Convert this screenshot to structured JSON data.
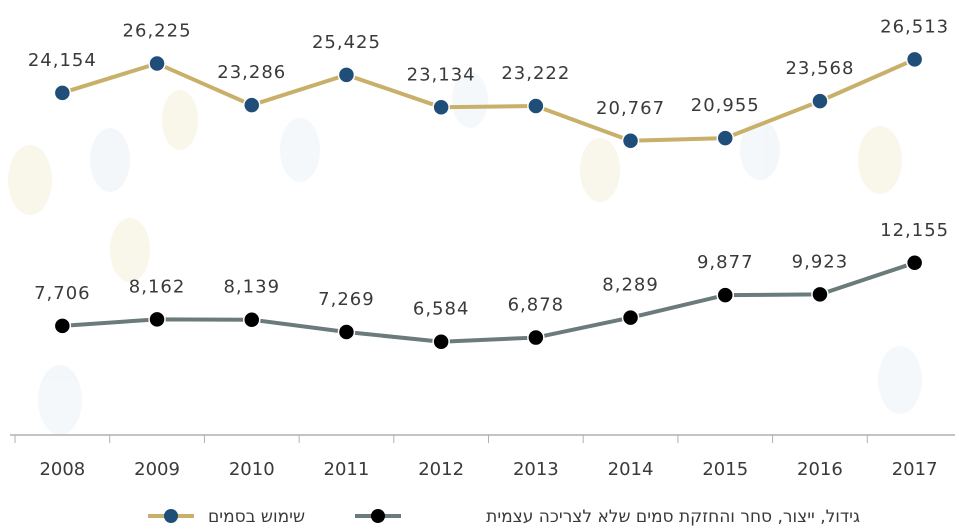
{
  "chart_data": {
    "type": "line",
    "categories": [
      "2008",
      "2009",
      "2010",
      "2011",
      "2012",
      "2013",
      "2014",
      "2015",
      "2016",
      "2017"
    ],
    "series": [
      {
        "name": "שימוש בסמים",
        "color": "#c8b06a",
        "marker_color": "#1f4e79",
        "values": [
          24154,
          26225,
          23286,
          25425,
          23134,
          23222,
          20767,
          20955,
          23568,
          26513
        ],
        "value_labels": [
          "24,154",
          "26,225",
          "23,286",
          "25,425",
          "23,134",
          "23,222",
          "20,767",
          "20,955",
          "23,568",
          "26,513"
        ]
      },
      {
        "name": "גידול, ייצור, סחר והחזקת סמים שלא לצריכה עצמית",
        "color": "#6b7b7b",
        "marker_color": "#000000",
        "values": [
          7706,
          8162,
          8139,
          7269,
          6584,
          6878,
          8289,
          9877,
          9923,
          12155
        ],
        "value_labels": [
          "7,706",
          "8,162",
          "8,139",
          "7,269",
          "6,584",
          "6,878",
          "8,289",
          "9,877",
          "9,923",
          "12,155"
        ]
      }
    ],
    "ylim": [
      0,
      30000
    ],
    "grid": false
  }
}
